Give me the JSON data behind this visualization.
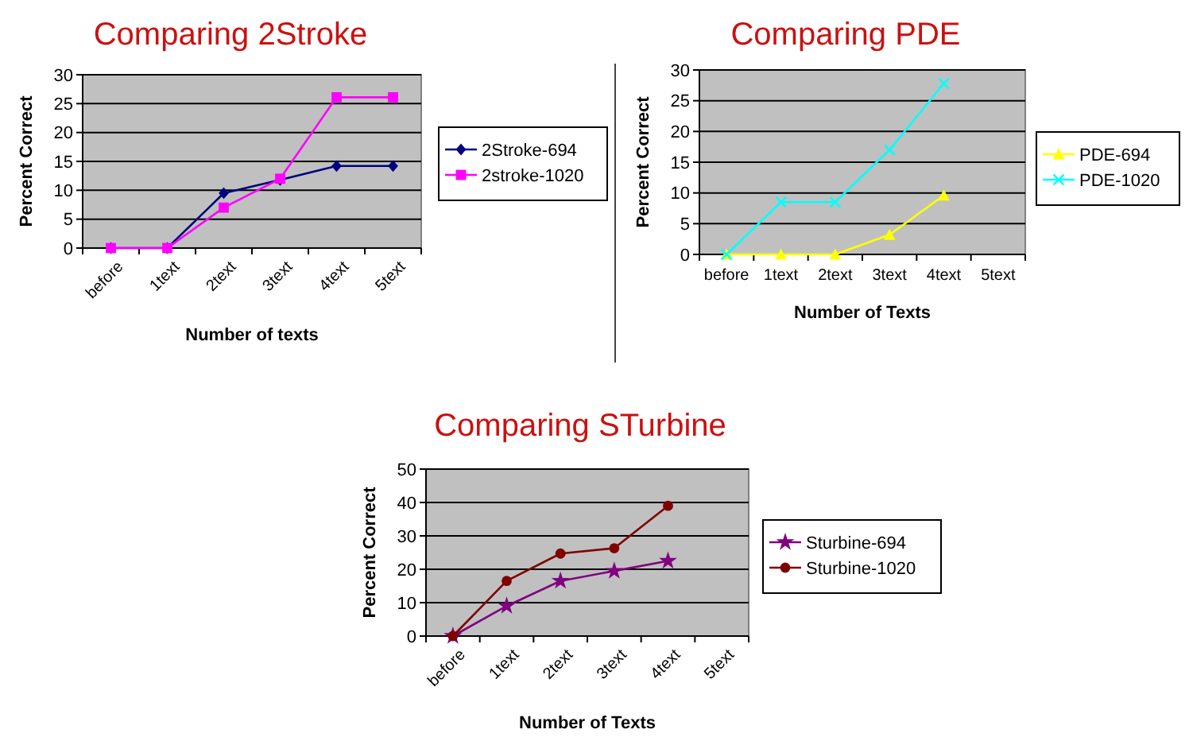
{
  "chart_data": [
    {
      "type": "line",
      "title": "Comparing 2Stroke",
      "xlabel": "Number of texts",
      "ylabel": "Percent Correct",
      "categories": [
        "before",
        "1text",
        "2text",
        "3text",
        "4text",
        "5text"
      ],
      "ylim": [
        0,
        30
      ],
      "yticks": [
        0,
        5,
        10,
        15,
        20,
        25,
        30
      ],
      "grid": "y",
      "legend": "right",
      "series": [
        {
          "name": "2Stroke-694",
          "color": "#000080",
          "marker": "diamond",
          "values": [
            0,
            0,
            9.5,
            11.8,
            14.2,
            14.2
          ]
        },
        {
          "name": "2stroke-1020",
          "color": "#ff00ff",
          "marker": "square",
          "values": [
            0,
            0,
            7,
            12,
            26.1,
            26.1
          ]
        }
      ]
    },
    {
      "type": "line",
      "title": "Comparing PDE",
      "xlabel": "Number of Texts",
      "ylabel": "Percent Correct",
      "categories": [
        "before",
        "1text",
        "2text",
        "3text",
        "4text",
        "5text"
      ],
      "ylim": [
        0,
        30
      ],
      "yticks": [
        0,
        5,
        10,
        15,
        20,
        25,
        30
      ],
      "grid": "y",
      "legend": "right",
      "series": [
        {
          "name": "PDE-694",
          "color": "#ffff00",
          "marker": "triangle",
          "values": [
            0,
            0,
            0,
            3.2,
            9.6,
            null
          ]
        },
        {
          "name": "PDE-1020",
          "color": "#00ffff",
          "marker": "cross",
          "values": [
            0,
            8.5,
            8.5,
            17,
            27.8,
            null
          ]
        }
      ]
    },
    {
      "type": "line",
      "title": "Comparing STurbine",
      "xlabel": "Number of Texts",
      "ylabel": "Percent Correct",
      "categories": [
        "before",
        "1text",
        "2text",
        "3text",
        "4text",
        "5text"
      ],
      "ylim": [
        0,
        50
      ],
      "yticks": [
        0,
        10,
        20,
        30,
        40,
        50
      ],
      "grid": "y",
      "legend": "right",
      "series": [
        {
          "name": "Sturbine-694",
          "color": "#800080",
          "marker": "star",
          "values": [
            0,
            9,
            16.5,
            19.5,
            22.5,
            null
          ]
        },
        {
          "name": "Sturbine-1020",
          "color": "#800000",
          "marker": "circle",
          "values": [
            0,
            16.5,
            24.7,
            26.3,
            39,
            null
          ]
        }
      ]
    }
  ]
}
